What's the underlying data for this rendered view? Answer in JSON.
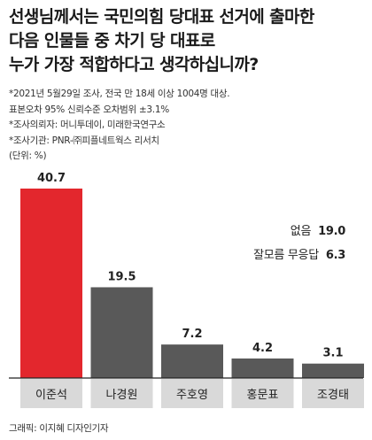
{
  "title_lines": [
    "선생님께서는 국민의힘 당대표 선거에 출마한",
    "다음 인물들 중 차기 당 대표로",
    "누가 가장 적합하다고 생각하십니까?"
  ],
  "notes": [
    "*2021년 5월29일 조사, 전국 만 18세 이상 1004명 대상.",
    "표본오차 95% 신뢰수준 오차범위 ±3.1%",
    "*조사의뢰자: 머니투데이, 미래한국연구소",
    "*조사기관: PNR-㈜피플네트웍스 리서치",
    "(단위: %)"
  ],
  "extra": [
    {
      "label": "없음",
      "value": "19.0"
    },
    {
      "label": "잘모름 무응답",
      "value": "6.3"
    }
  ],
  "credit": "그래픽: 이지혜 디자인기자",
  "colors": {
    "highlight": "#e3272d",
    "bar": "#595959",
    "label_bg": "#d9d9d9",
    "axis": "#222222"
  },
  "chart_data": {
    "type": "bar",
    "categories": [
      "이준석",
      "나경원",
      "주호영",
      "홍문표",
      "조경태"
    ],
    "values": [
      40.7,
      19.5,
      7.2,
      4.2,
      3.1
    ],
    "highlight_index": 0,
    "unit": "%",
    "ylim": [
      0,
      45
    ],
    "grid": false
  }
}
